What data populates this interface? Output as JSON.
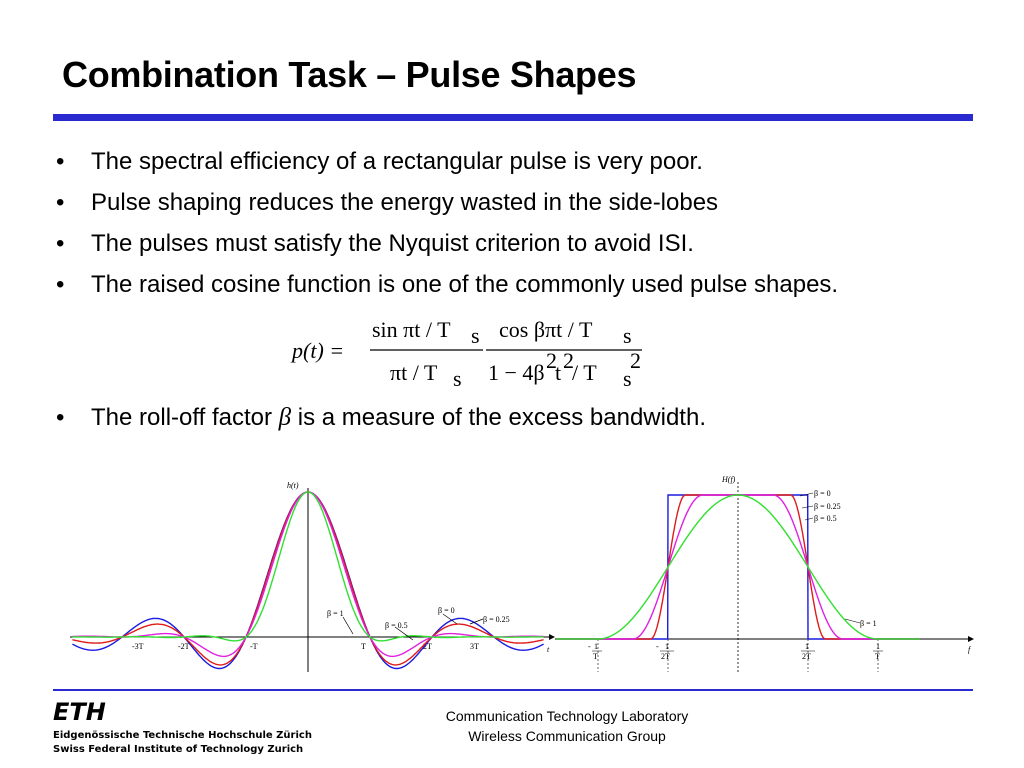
{
  "slide": {
    "title": "Combination Task – Pulse Shapes",
    "bullet_symbol": "•",
    "bullets": [
      "The spectral efficiency of a rectangular pulse is very poor.",
      "Pulse shaping reduces the energy wasted in the side-lobes",
      "The pulses must satisfy the Nyquist criterion to avoid ISI.",
      "The raised cosine function is one of the commonly used pulse shapes."
    ],
    "rolloff_bullet": {
      "before": "The roll-off factor ",
      "symbol": "β",
      "after": " is a measure of the excess bandwidth."
    }
  },
  "formula": {
    "lhs": "p(t) =",
    "num1": "sin πt / T",
    "num1_sub": "s",
    "den1": "πt / T",
    "den1_sub": "s",
    "num2": "cos βπt / T",
    "num2_sub": "s",
    "den2": "1 − 4β",
    "den2_sup1": "2",
    "den2_t": "t",
    "den2_sup2": "2",
    "den2_rest": " / T",
    "den2_sub": "s",
    "den2_sup3": "2"
  },
  "time_plot": {
    "ylabel": "h(t)",
    "xlabel": "t",
    "ticks": [
      "-3T",
      "-2T",
      "-T",
      "T",
      "2T",
      "3T"
    ],
    "annotations": [
      "β = 1",
      "β = 0.5",
      "β = 0",
      "β = 0.25"
    ]
  },
  "freq_plot": {
    "ylabel": "H(f)",
    "xlabel": "f",
    "ticks": [
      {
        "sign": "-",
        "num": "1",
        "den": "T"
      },
      {
        "sign": "-",
        "num": "1",
        "den": "2T"
      },
      {
        "sign": "",
        "num": "1",
        "den": "2T"
      },
      {
        "sign": "",
        "num": "1",
        "den": "T"
      }
    ],
    "legend": [
      "β = 0",
      "β = 0.25",
      "β = 0.5"
    ],
    "annotation": "β = 1"
  },
  "colors": {
    "title_rule": "#2a2ad0",
    "beta_0": "#1a1ae0",
    "beta_025": "#e01a1a",
    "beta_05": "#e020e0",
    "beta_1": "#30e030"
  },
  "footer": {
    "logo_text": "ETH",
    "institute_de": "Eidgenössische Technische Hochschule Zürich",
    "institute_en": "Swiss Federal Institute of Technology Zurich",
    "lab": "Communication Technology Laboratory",
    "group": "Wireless Communication Group"
  }
}
